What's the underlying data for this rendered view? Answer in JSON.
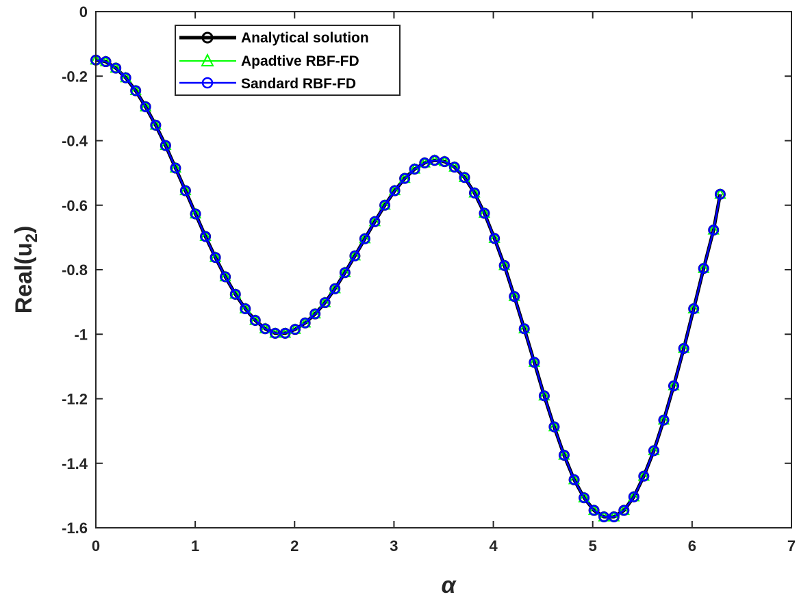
{
  "chart_data": {
    "type": "line",
    "title": "",
    "xlabel": "α",
    "ylabel": "Real(u",
    "ylabel_subscript": "2",
    "ylabel_suffix": ")",
    "xlim": [
      0,
      7
    ],
    "ylim": [
      -1.6,
      0
    ],
    "xticks": [
      0,
      1,
      2,
      3,
      4,
      5,
      6,
      7
    ],
    "yticks": [
      0,
      -0.2,
      -0.4,
      -0.6,
      -0.8,
      -1,
      -1.2,
      -1.4,
      -1.6
    ],
    "xtick_labels": [
      "0",
      "1",
      "2",
      "3",
      "4",
      "5",
      "6",
      "7"
    ],
    "ytick_labels": [
      "0",
      "-0.2",
      "-0.4",
      "-0.6",
      "-0.8",
      "-1",
      "-1.2",
      "-1.4",
      "-1.6"
    ],
    "grid": false,
    "legend_position": "top-left",
    "x": [
      0.0,
      0.1,
      0.201,
      0.301,
      0.401,
      0.501,
      0.602,
      0.702,
      0.802,
      0.902,
      1.003,
      1.103,
      1.203,
      1.303,
      1.404,
      1.504,
      1.604,
      1.704,
      1.805,
      1.905,
      2.005,
      2.106,
      2.206,
      2.306,
      2.406,
      2.507,
      2.607,
      2.707,
      2.807,
      2.908,
      3.008,
      3.108,
      3.208,
      3.309,
      3.409,
      3.509,
      3.609,
      3.71,
      3.81,
      3.91,
      4.011,
      4.111,
      4.211,
      4.311,
      4.412,
      4.512,
      4.612,
      4.712,
      4.813,
      4.913,
      5.013,
      5.113,
      5.214,
      5.314,
      5.414,
      5.514,
      5.615,
      5.715,
      5.815,
      5.916,
      6.016,
      6.116,
      6.216,
      6.283
    ],
    "series": [
      {
        "name": "Analytical solution",
        "color": "#000000",
        "marker": "circle",
        "values": [
          -0.15,
          -0.155,
          -0.175,
          -0.205,
          -0.245,
          -0.295,
          -0.352,
          -0.415,
          -0.485,
          -0.555,
          -0.627,
          -0.697,
          -0.762,
          -0.822,
          -0.876,
          -0.921,
          -0.957,
          -0.983,
          -0.997,
          -0.997,
          -0.985,
          -0.965,
          -0.937,
          -0.902,
          -0.859,
          -0.809,
          -0.757,
          -0.704,
          -0.651,
          -0.6,
          -0.555,
          -0.517,
          -0.488,
          -0.469,
          -0.461,
          -0.465,
          -0.482,
          -0.514,
          -0.562,
          -0.625,
          -0.703,
          -0.787,
          -0.883,
          -0.983,
          -1.087,
          -1.191,
          -1.287,
          -1.375,
          -1.451,
          -1.507,
          -1.546,
          -1.566,
          -1.566,
          -1.546,
          -1.504,
          -1.44,
          -1.361,
          -1.266,
          -1.16,
          -1.044,
          -0.921,
          -0.796,
          -0.677,
          -0.566
        ]
      },
      {
        "name": "Apadtive RBF-FD",
        "color": "#00ff00",
        "marker": "triangle",
        "values": [
          -0.15,
          -0.155,
          -0.175,
          -0.205,
          -0.245,
          -0.295,
          -0.352,
          -0.415,
          -0.485,
          -0.555,
          -0.627,
          -0.697,
          -0.762,
          -0.822,
          -0.876,
          -0.921,
          -0.957,
          -0.983,
          -0.997,
          -0.997,
          -0.985,
          -0.965,
          -0.937,
          -0.902,
          -0.859,
          -0.809,
          -0.757,
          -0.704,
          -0.651,
          -0.6,
          -0.555,
          -0.517,
          -0.488,
          -0.469,
          -0.461,
          -0.465,
          -0.482,
          -0.514,
          -0.562,
          -0.625,
          -0.703,
          -0.787,
          -0.883,
          -0.983,
          -1.087,
          -1.191,
          -1.287,
          -1.375,
          -1.451,
          -1.507,
          -1.546,
          -1.566,
          -1.566,
          -1.546,
          -1.504,
          -1.44,
          -1.361,
          -1.266,
          -1.16,
          -1.044,
          -0.921,
          -0.796,
          -0.677,
          -0.566
        ]
      },
      {
        "name": "Sandard RBF-FD",
        "color": "#0000ff",
        "marker": "circle",
        "values": [
          -0.15,
          -0.155,
          -0.175,
          -0.205,
          -0.245,
          -0.295,
          -0.352,
          -0.415,
          -0.485,
          -0.555,
          -0.627,
          -0.697,
          -0.762,
          -0.822,
          -0.876,
          -0.921,
          -0.957,
          -0.983,
          -0.997,
          -0.997,
          -0.985,
          -0.965,
          -0.937,
          -0.902,
          -0.859,
          -0.809,
          -0.757,
          -0.704,
          -0.651,
          -0.6,
          -0.555,
          -0.517,
          -0.488,
          -0.469,
          -0.461,
          -0.465,
          -0.482,
          -0.514,
          -0.562,
          -0.625,
          -0.703,
          -0.787,
          -0.883,
          -0.983,
          -1.087,
          -1.191,
          -1.287,
          -1.375,
          -1.451,
          -1.507,
          -1.546,
          -1.566,
          -1.566,
          -1.546,
          -1.504,
          -1.44,
          -1.361,
          -1.266,
          -1.16,
          -1.044,
          -0.921,
          -0.796,
          -0.677,
          -0.566
        ]
      }
    ]
  }
}
